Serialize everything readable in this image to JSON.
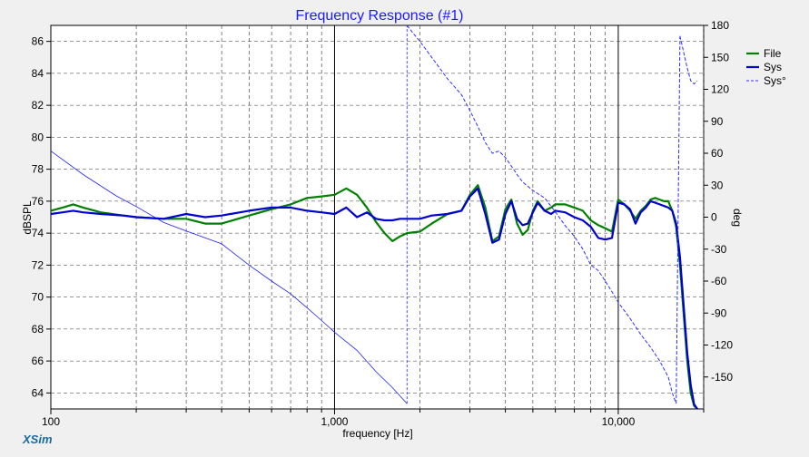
{
  "chart_data": {
    "type": "line",
    "title": "Frequency Response (#1)",
    "xlabel": "frequency [Hz]",
    "ylabel": "dBSPL",
    "y2label": "deg",
    "x_scale": "log",
    "xlim": [
      100,
      20000
    ],
    "ylim": [
      63,
      87
    ],
    "y2lim": [
      -180,
      180
    ],
    "x_ticks": [
      {
        "value": 100,
        "label": "100"
      },
      {
        "value": 1000,
        "label": "1,000"
      },
      {
        "value": 10000,
        "label": "10,000"
      }
    ],
    "y_ticks": [
      64,
      66,
      68,
      70,
      72,
      74,
      76,
      78,
      80,
      82,
      84,
      86
    ],
    "y2_ticks": [
      -150,
      -120,
      -90,
      -60,
      -30,
      0,
      30,
      60,
      90,
      120,
      150,
      180
    ],
    "grid": true,
    "legend_position": "right",
    "series": [
      {
        "name": "File",
        "axis": "left",
        "color": "#008000",
        "style": "solid",
        "x": [
          100,
          110,
          120,
          130,
          150,
          180,
          200,
          250,
          300,
          350,
          400,
          500,
          600,
          700,
          800,
          900,
          1000,
          1100,
          1200,
          1300,
          1400,
          1500,
          1600,
          1700,
          1800,
          2000,
          2200,
          2500,
          2800,
          3000,
          3200,
          3400,
          3600,
          3800,
          4000,
          4200,
          4400,
          4600,
          4800,
          5000,
          5200,
          5500,
          5800,
          6000,
          6500,
          7000,
          7500,
          8000,
          8500,
          9000,
          9500,
          10000,
          10500,
          11000,
          11500,
          12000,
          12500,
          13000,
          13500,
          14000,
          14500,
          15000,
          15500,
          16000,
          16500,
          17000,
          17500,
          18000,
          18500,
          19000
        ],
        "values": [
          75.4,
          75.6,
          75.8,
          75.6,
          75.3,
          75.1,
          75.0,
          74.9,
          74.9,
          74.6,
          74.6,
          75.1,
          75.5,
          75.8,
          76.2,
          76.3,
          76.4,
          76.8,
          76.4,
          75.6,
          74.7,
          74.0,
          73.5,
          73.8,
          74.0,
          74.1,
          74.6,
          75.2,
          75.4,
          76.4,
          77.0,
          75.6,
          73.5,
          73.8,
          75.5,
          76.1,
          74.6,
          73.9,
          74.2,
          75.4,
          76.0,
          75.4,
          75.6,
          75.8,
          75.8,
          75.6,
          75.4,
          74.8,
          74.5,
          74.3,
          74.1,
          76.1,
          75.8,
          75.4,
          74.9,
          75.4,
          75.7,
          76.1,
          76.2,
          76.1,
          76.0,
          76.0,
          75.4,
          74.4,
          72.0,
          69.0,
          66.0,
          64.0,
          63.2,
          63.0
        ]
      },
      {
        "name": "Sys",
        "axis": "left",
        "color": "#0000d0",
        "style": "solid",
        "x": [
          100,
          110,
          120,
          130,
          150,
          180,
          200,
          250,
          300,
          350,
          400,
          500,
          600,
          700,
          800,
          900,
          1000,
          1100,
          1200,
          1300,
          1400,
          1500,
          1600,
          1700,
          1800,
          2000,
          2200,
          2500,
          2800,
          3000,
          3200,
          3400,
          3600,
          3800,
          4000,
          4200,
          4400,
          4600,
          4800,
          5000,
          5200,
          5500,
          5800,
          6000,
          6500,
          7000,
          7500,
          8000,
          8500,
          9000,
          9500,
          10000,
          10500,
          11000,
          11500,
          12000,
          12500,
          13000,
          13500,
          14000,
          14500,
          15000,
          15500,
          16000,
          16500,
          17000,
          17500,
          18000,
          18500,
          19000
        ],
        "values": [
          75.2,
          75.3,
          75.4,
          75.3,
          75.2,
          75.1,
          75.0,
          74.9,
          75.2,
          75.0,
          75.1,
          75.4,
          75.6,
          75.6,
          75.4,
          75.3,
          75.2,
          75.6,
          75.0,
          75.3,
          74.9,
          74.8,
          74.8,
          74.9,
          74.9,
          74.9,
          75.1,
          75.2,
          75.4,
          76.3,
          76.8,
          75.2,
          73.4,
          73.6,
          75.2,
          76.0,
          74.9,
          74.5,
          74.6,
          75.3,
          75.9,
          75.4,
          75.2,
          75.4,
          75.3,
          75.0,
          74.8,
          74.4,
          73.7,
          73.6,
          73.7,
          75.9,
          75.8,
          75.5,
          74.6,
          75.3,
          75.6,
          76.0,
          75.9,
          75.8,
          75.7,
          75.6,
          75.4,
          74.6,
          72.5,
          69.5,
          66.5,
          64.5,
          63.3,
          63.0
        ]
      },
      {
        "name": "Sys°",
        "axis": "right",
        "color": "#3030ff",
        "style": "dashed",
        "x": [
          1800,
          1900,
          2000,
          2200,
          2500,
          2800,
          3000,
          3200,
          3400,
          3600,
          3800,
          4000,
          4200,
          4400,
          4600,
          5000,
          5500,
          6000,
          6500,
          7000,
          7500,
          8000,
          8500,
          9000,
          9500,
          10000,
          11000,
          12000,
          13000,
          14000,
          15000,
          15500,
          16000,
          16500,
          17000,
          17500,
          18000,
          18500,
          19000
        ],
        "values": [
          180,
          172,
          165,
          150,
          130,
          115,
          100,
          85,
          70,
          60,
          62,
          56,
          48,
          40,
          33,
          25,
          18,
          5,
          -8,
          -18,
          -30,
          -45,
          -50,
          -60,
          -70,
          -80,
          -95,
          -110,
          -122,
          -135,
          -150,
          -165,
          -175,
          170,
          155,
          140,
          128,
          125,
          128
        ]
      }
    ],
    "helper_lines": [
      {
        "axis": "right",
        "color": "#2020ff",
        "style": "thin",
        "x": [
          100,
          130,
          170,
          200,
          250,
          300,
          400,
          500,
          600,
          700,
          800,
          900,
          1000,
          1200,
          1400,
          1600,
          1800
        ],
        "values": [
          62,
          40,
          20,
          10,
          -5,
          -13,
          -25,
          -45,
          -60,
          -72,
          -85,
          -97,
          -108,
          -125,
          -145,
          -160,
          -175
        ]
      }
    ],
    "brand": "XSim"
  }
}
